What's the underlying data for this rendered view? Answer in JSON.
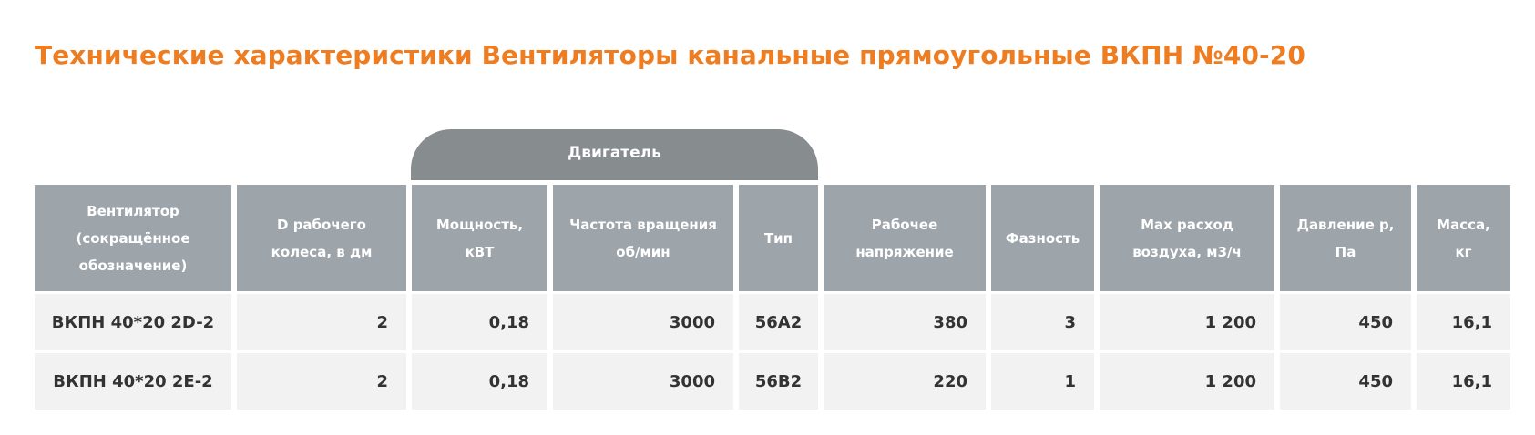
{
  "page": {
    "title": "Технические характеристики Вентиляторы канальные прямоугольные ВКПН №40-20"
  },
  "table": {
    "group_header": "Двигатель",
    "headers": [
      "Вентилятор\n(сокращённое\nобозначение)",
      "D рабочего\nколеса, в дм",
      "Мощность,\nкВТ",
      "Частота вращения\nоб/мин",
      "Тип",
      "Рабочее\nнапряжение",
      "Фазность",
      "Max расход\nвоздуха, м3/ч",
      "Давление р,\nПа",
      "Масса,\nкг"
    ],
    "rows": [
      [
        "ВКПН 40*20 2D-2",
        "2",
        "0,18",
        "3000",
        "56A2",
        "380",
        "3",
        "1 200",
        "450",
        "16,1"
      ],
      [
        "ВКПН 40*20 2E-2",
        "2",
        "0,18",
        "3000",
        "56B2",
        "220",
        "1",
        "1 200",
        "450",
        "16,1"
      ]
    ]
  },
  "colors": {
    "title": "#ee7d22",
    "group_header_bg": "#878c8f",
    "header_bg": "#9da4aa",
    "row_bg": "#f2f2f2"
  }
}
